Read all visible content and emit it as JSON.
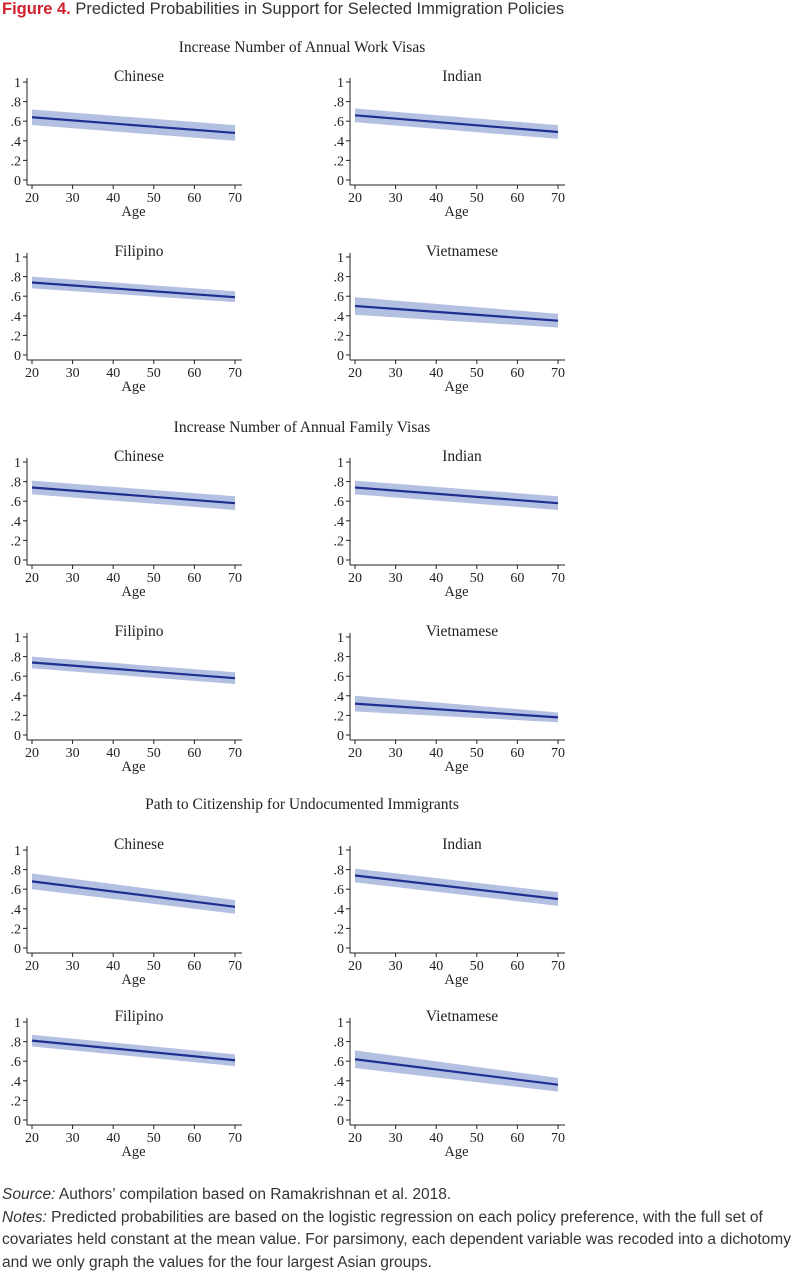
{
  "figure": {
    "number": "Figure 4.",
    "title": "Predicted Probabilities in Support for Selected Immigration Policies"
  },
  "style": {
    "line_color": "#1f2f8f",
    "band_color": "#b4c0e2",
    "title_color": "#d0202e"
  },
  "chart_data": [
    {
      "section": "Increase Number of Annual Work Visas",
      "panels": [
        {
          "group": "Chinese",
          "type": "line",
          "x": [
            20,
            70
          ],
          "y": [
            0.64,
            0.48
          ],
          "ci_lower": [
            0.56,
            0.4
          ],
          "ci_upper": [
            0.72,
            0.56
          ],
          "xlabel": "Age",
          "xticks": [
            20,
            30,
            40,
            50,
            60,
            70
          ],
          "yticks": [
            "0",
            ".2",
            ".4",
            ".6",
            ".8",
            "1"
          ],
          "ylim": [
            0,
            1
          ]
        },
        {
          "group": "Indian",
          "type": "line",
          "x": [
            20,
            70
          ],
          "y": [
            0.66,
            0.49
          ],
          "ci_lower": [
            0.59,
            0.42
          ],
          "ci_upper": [
            0.73,
            0.56
          ],
          "xlabel": "Age",
          "xticks": [
            20,
            30,
            40,
            50,
            60,
            70
          ],
          "yticks": [
            "0",
            ".2",
            ".4",
            ".6",
            ".8",
            "1"
          ],
          "ylim": [
            0,
            1
          ]
        },
        {
          "group": "Filipino",
          "type": "line",
          "x": [
            20,
            70
          ],
          "y": [
            0.74,
            0.59
          ],
          "ci_lower": [
            0.68,
            0.54
          ],
          "ci_upper": [
            0.8,
            0.65
          ],
          "xlabel": "Age",
          "xticks": [
            20,
            30,
            40,
            50,
            60,
            70
          ],
          "yticks": [
            "0",
            ".2",
            ".4",
            ".6",
            ".8",
            "1"
          ],
          "ylim": [
            0,
            1
          ]
        },
        {
          "group": "Vietnamese",
          "type": "line",
          "x": [
            20,
            70
          ],
          "y": [
            0.5,
            0.35
          ],
          "ci_lower": [
            0.41,
            0.28
          ],
          "ci_upper": [
            0.59,
            0.42
          ],
          "xlabel": "Age",
          "xticks": [
            20,
            30,
            40,
            50,
            60,
            70
          ],
          "yticks": [
            "0",
            ".2",
            ".4",
            ".6",
            ".8",
            "1"
          ],
          "ylim": [
            0,
            1
          ]
        }
      ]
    },
    {
      "section": "Increase Number of Annual Family Visas",
      "panels": [
        {
          "group": "Chinese",
          "type": "line",
          "x": [
            20,
            70
          ],
          "y": [
            0.74,
            0.58
          ],
          "ci_lower": [
            0.67,
            0.51
          ],
          "ci_upper": [
            0.81,
            0.65
          ],
          "xlabel": "Age",
          "xticks": [
            20,
            30,
            40,
            50,
            60,
            70
          ],
          "yticks": [
            "0",
            ".2",
            ".4",
            ".6",
            ".8",
            "1"
          ],
          "ylim": [
            0,
            1
          ]
        },
        {
          "group": "Indian",
          "type": "line",
          "x": [
            20,
            70
          ],
          "y": [
            0.74,
            0.58
          ],
          "ci_lower": [
            0.67,
            0.51
          ],
          "ci_upper": [
            0.81,
            0.65
          ],
          "xlabel": "Age",
          "xticks": [
            20,
            30,
            40,
            50,
            60,
            70
          ],
          "yticks": [
            "0",
            ".2",
            ".4",
            ".6",
            ".8",
            "1"
          ],
          "ylim": [
            0,
            1
          ]
        },
        {
          "group": "Filipino",
          "type": "line",
          "x": [
            20,
            70
          ],
          "y": [
            0.74,
            0.58
          ],
          "ci_lower": [
            0.68,
            0.52
          ],
          "ci_upper": [
            0.8,
            0.64
          ],
          "xlabel": "Age",
          "xticks": [
            20,
            30,
            40,
            50,
            60,
            70
          ],
          "yticks": [
            "0",
            ".2",
            ".4",
            ".6",
            ".8",
            "1"
          ],
          "ylim": [
            0,
            1
          ]
        },
        {
          "group": "Vietnamese",
          "type": "line",
          "x": [
            20,
            70
          ],
          "y": [
            0.32,
            0.18
          ],
          "ci_lower": [
            0.24,
            0.13
          ],
          "ci_upper": [
            0.4,
            0.23
          ],
          "xlabel": "Age",
          "xticks": [
            20,
            30,
            40,
            50,
            60,
            70
          ],
          "yticks": [
            "0",
            ".2",
            ".4",
            ".6",
            ".8",
            "1"
          ],
          "ylim": [
            0,
            1
          ]
        }
      ]
    },
    {
      "section": "Path to Citizenship for Undocumented Immigrants",
      "panels": [
        {
          "group": "Chinese",
          "type": "line",
          "x": [
            20,
            70
          ],
          "y": [
            0.68,
            0.42
          ],
          "ci_lower": [
            0.6,
            0.35
          ],
          "ci_upper": [
            0.76,
            0.49
          ],
          "xlabel": "Age",
          "xticks": [
            20,
            30,
            40,
            50,
            60,
            70
          ],
          "yticks": [
            "0",
            ".2",
            ".4",
            ".6",
            ".8",
            "1"
          ],
          "ylim": [
            0,
            1
          ]
        },
        {
          "group": "Indian",
          "type": "line",
          "x": [
            20,
            70
          ],
          "y": [
            0.74,
            0.5
          ],
          "ci_lower": [
            0.67,
            0.43
          ],
          "ci_upper": [
            0.81,
            0.57
          ],
          "xlabel": "Age",
          "xticks": [
            20,
            30,
            40,
            50,
            60,
            70
          ],
          "yticks": [
            "0",
            ".2",
            ".4",
            ".6",
            ".8",
            "1"
          ],
          "ylim": [
            0,
            1
          ]
        },
        {
          "group": "Filipino",
          "type": "line",
          "x": [
            20,
            70
          ],
          "y": [
            0.81,
            0.61
          ],
          "ci_lower": [
            0.75,
            0.55
          ],
          "ci_upper": [
            0.87,
            0.67
          ],
          "xlabel": "Age",
          "xticks": [
            20,
            30,
            40,
            50,
            60,
            70
          ],
          "yticks": [
            "0",
            ".2",
            ".4",
            ".6",
            ".8",
            "1"
          ],
          "ylim": [
            0,
            1
          ]
        },
        {
          "group": "Vietnamese",
          "type": "line",
          "x": [
            20,
            70
          ],
          "y": [
            0.62,
            0.36
          ],
          "ci_lower": [
            0.53,
            0.29
          ],
          "ci_upper": [
            0.71,
            0.43
          ],
          "xlabel": "Age",
          "xticks": [
            20,
            30,
            40,
            50,
            60,
            70
          ],
          "yticks": [
            "0",
            ".2",
            ".4",
            ".6",
            ".8",
            "1"
          ],
          "ylim": [
            0,
            1
          ]
        }
      ]
    }
  ],
  "source": {
    "label": "Source:",
    "text": " Authors’ compilation based on Ramakrishnan et al. 2018."
  },
  "notes": {
    "label": "Notes:",
    "text": " Predicted probabilities are based on the logistic regression on each policy preference, with the full set of covariates held constant at the mean value. For parsimony, each dependent variable was recoded into a dichotomy and we only graph the values for the four largest Asian groups."
  }
}
